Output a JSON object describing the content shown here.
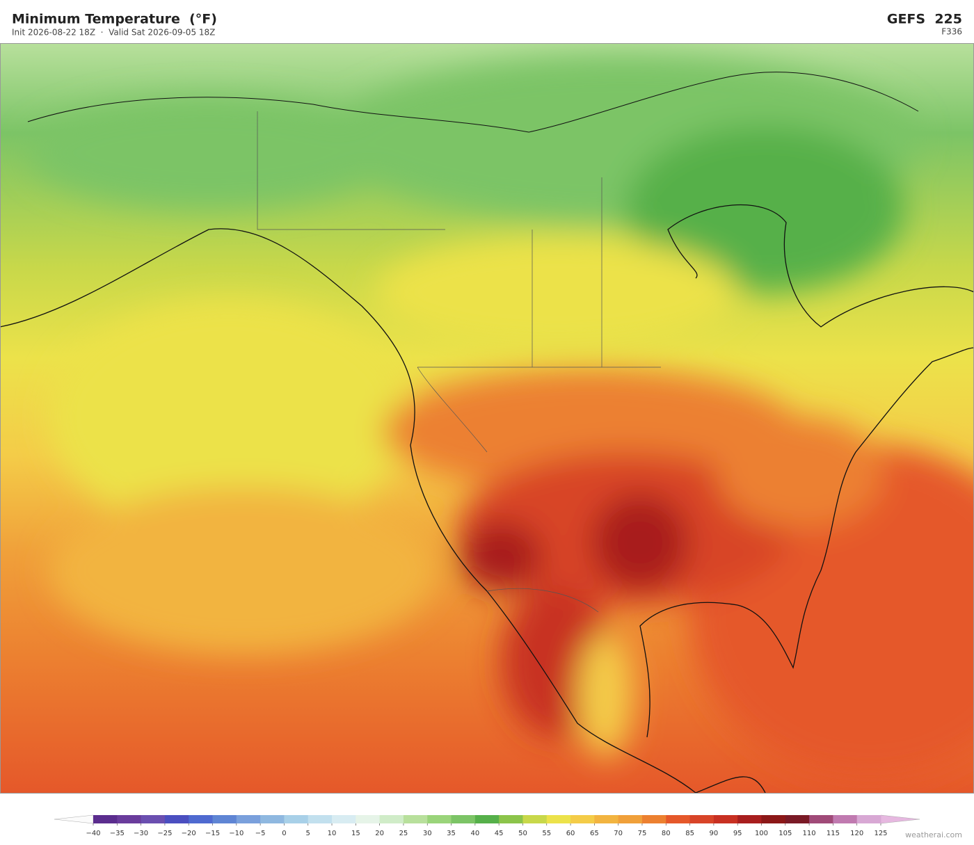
{
  "header": {
    "title": "Minimum Temperature  (°F)",
    "subtitle": "Init 2026-08-22 18Z  ·  Valid Sat 2026-09-05 18Z",
    "model": "GEFS  225",
    "forecast_hour": "F336"
  },
  "colorbar": {
    "ticks": [
      {
        "value": -40,
        "label": "−40"
      },
      {
        "value": -35,
        "label": "−35"
      },
      {
        "value": -30,
        "label": "−30"
      },
      {
        "value": -25,
        "label": "−25"
      },
      {
        "value": -20,
        "label": "−20"
      },
      {
        "value": -15,
        "label": "−15"
      },
      {
        "value": -10,
        "label": "−10"
      },
      {
        "value": -5,
        "label": "−5"
      },
      0,
      5,
      10,
      15,
      20,
      25,
      30,
      35,
      40,
      45,
      50,
      55,
      60,
      65,
      70,
      75,
      80,
      85,
      90,
      95,
      100,
      105,
      110,
      115,
      120,
      125
    ],
    "colors": [
      "#5b2d8e",
      "#6a3c9c",
      "#6b4fb0",
      "#4b4fc0",
      "#4f6ad0",
      "#5f85d4",
      "#7aa0dc",
      "#8fb8e0",
      "#a8d0e8",
      "#c2e0ee",
      "#d8ecf2",
      "#e6f4e8",
      "#d0ecc8",
      "#b8e09c",
      "#9ad47a",
      "#7cc466",
      "#56b04a",
      "#8cc44a",
      "#c8d84a",
      "#ece24a",
      "#f4cc48",
      "#f2b440",
      "#f0a03a",
      "#ec8030",
      "#e5582a",
      "#d84428",
      "#c83022",
      "#a81e1e",
      "#8c1818",
      "#7a1a26",
      "#a04a78",
      "#c07ab0",
      "#d8a8d4"
    ]
  },
  "credit": "weatherai.com"
}
